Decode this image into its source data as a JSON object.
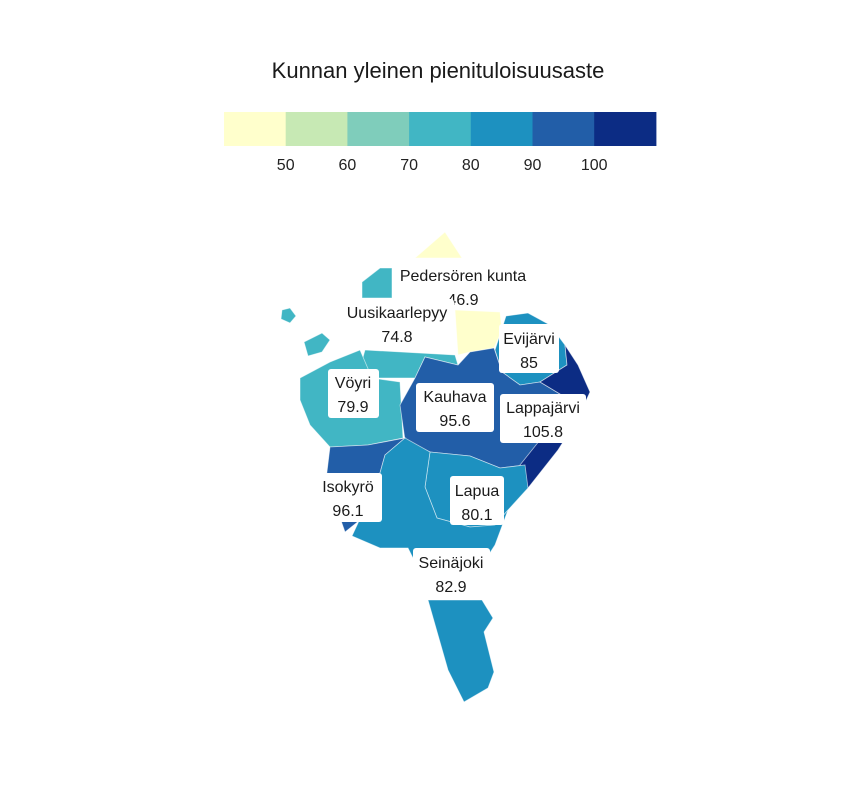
{
  "title": "Kunnan yleinen pienituloisuusaste",
  "legend": {
    "bins": [
      {
        "upper": 50,
        "color": "#ffffcc"
      },
      {
        "upper": 60,
        "color": "#c7e9b4"
      },
      {
        "upper": 70,
        "color": "#7fcdbb"
      },
      {
        "upper": 80,
        "color": "#41b6c4"
      },
      {
        "upper": 90,
        "color": "#1d91c0"
      },
      {
        "upper": 100,
        "color": "#225ea8"
      },
      {
        "upper": null,
        "color": "#0c2c84"
      }
    ],
    "tick_labels": [
      "50",
      "60",
      "70",
      "80",
      "90",
      "100"
    ]
  },
  "regions": [
    {
      "id": "pedersoren",
      "name": "Pedersören kunta",
      "value_text": "46.9",
      "value": 46.9,
      "color": "#ffffcc"
    },
    {
      "id": "uusikaarlepyy",
      "name": "Uusikaarlepyy",
      "value_text": "74.8",
      "value": 74.8,
      "color": "#41b6c4"
    },
    {
      "id": "evijarvi",
      "name": "Evijärvi",
      "value_text": "85",
      "value": 85,
      "color": "#1d91c0"
    },
    {
      "id": "voyri",
      "name": "Vöyri",
      "value_text": "79.9",
      "value": 79.9,
      "color": "#41b6c4"
    },
    {
      "id": "kauhava",
      "name": "Kauhava",
      "value_text": "95.6",
      "value": 95.6,
      "color": "#225ea8"
    },
    {
      "id": "lappajarvi",
      "name": "Lappajärvi",
      "value_text": "105.8",
      "value": 105.8,
      "color": "#0c2c84"
    },
    {
      "id": "isokyro",
      "name": "Isokyrö",
      "value_text": "96.1",
      "value": 96.1,
      "color": "#225ea8"
    },
    {
      "id": "lapua",
      "name": "Lapua",
      "value_text": "80.1",
      "value": 80.1,
      "color": "#1d91c0"
    },
    {
      "id": "seinajoki",
      "name": "Seinäjoki",
      "value_text": "82.9",
      "value": 82.9,
      "color": "#1d91c0"
    }
  ]
}
